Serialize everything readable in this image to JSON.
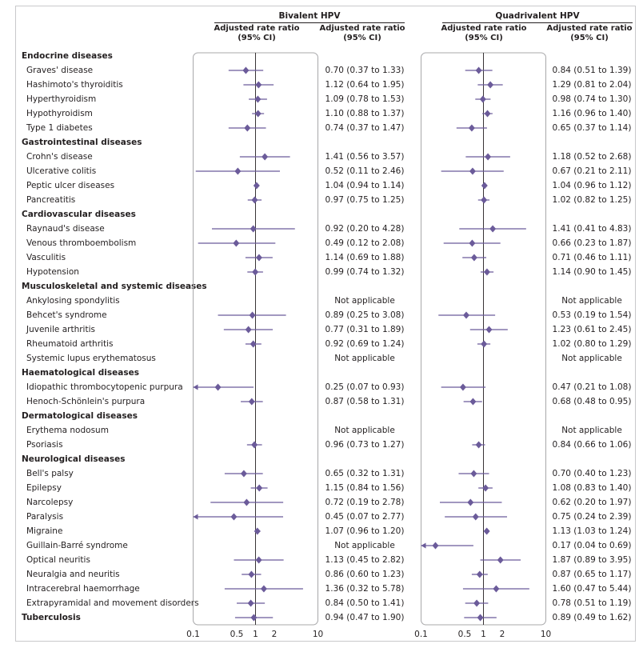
{
  "colors": {
    "marker": "#6b5b9a",
    "panel_border": "#a8a8aa",
    "text": "#231f20"
  },
  "columns": {
    "bivalent": "Bivalent HPV",
    "quadrivalent": "Quadrivalent HPV",
    "ratio_header_line1": "Adjusted rate ratio",
    "ci_header": "(95% CI)"
  },
  "chart_data": {
    "type": "forest",
    "x_scale": "log",
    "xlim": [
      0.1,
      10
    ],
    "x_ticks": [
      "0.1",
      "0.5",
      "1",
      "2",
      "10"
    ],
    "reference_line": 1,
    "panels": [
      "Bivalent HPV",
      "Quadrivalent HPV"
    ],
    "rows": [
      {
        "label": "Endocrine diseases",
        "category": true
      },
      {
        "label": "Graves' disease",
        "biv": {
          "est": 0.7,
          "lo": 0.37,
          "hi": 1.33,
          "text": "0.70 (0.37 to 1.33)"
        },
        "quad": {
          "est": 0.84,
          "lo": 0.51,
          "hi": 1.39,
          "text": "0.84 (0.51 to 1.39)"
        }
      },
      {
        "label": "Hashimoto's thyroiditis",
        "biv": {
          "est": 1.12,
          "lo": 0.64,
          "hi": 1.95,
          "text": "1.12 (0.64 to 1.95)"
        },
        "quad": {
          "est": 1.29,
          "lo": 0.81,
          "hi": 2.04,
          "text": "1.29 (0.81 to 2.04)"
        }
      },
      {
        "label": "Hyperthyroidism",
        "biv": {
          "est": 1.09,
          "lo": 0.78,
          "hi": 1.53,
          "text": "1.09 (0.78 to 1.53)"
        },
        "quad": {
          "est": 0.98,
          "lo": 0.74,
          "hi": 1.3,
          "text": "0.98 (0.74 to 1.30)"
        }
      },
      {
        "label": "Hypothyroidism",
        "biv": {
          "est": 1.1,
          "lo": 0.88,
          "hi": 1.37,
          "text": "1.10 (0.88 to 1.37)"
        },
        "quad": {
          "est": 1.16,
          "lo": 0.96,
          "hi": 1.4,
          "text": "1.16 (0.96 to 1.40)"
        }
      },
      {
        "label": "Type 1 diabetes",
        "biv": {
          "est": 0.74,
          "lo": 0.37,
          "hi": 1.47,
          "text": "0.74 (0.37 to 1.47)"
        },
        "quad": {
          "est": 0.65,
          "lo": 0.37,
          "hi": 1.14,
          "text": "0.65 (0.37 to 1.14)"
        }
      },
      {
        "label": "Gastrointestinal diseases",
        "category": true
      },
      {
        "label": "Crohn's disease",
        "biv": {
          "est": 1.41,
          "lo": 0.56,
          "hi": 3.57,
          "text": "1.41 (0.56 to 3.57)"
        },
        "quad": {
          "est": 1.18,
          "lo": 0.52,
          "hi": 2.68,
          "text": "1.18 (0.52 to 2.68)"
        }
      },
      {
        "label": "Ulcerative colitis",
        "biv": {
          "est": 0.52,
          "lo": 0.11,
          "hi": 2.46,
          "text": "0.52 (0.11 to 2.46)"
        },
        "quad": {
          "est": 0.67,
          "lo": 0.21,
          "hi": 2.11,
          "text": "0.67 (0.21 to 2.11)"
        }
      },
      {
        "label": "Peptic ulcer diseases",
        "biv": {
          "est": 1.04,
          "lo": 0.94,
          "hi": 1.14,
          "text": "1.04 (0.94 to 1.14)"
        },
        "quad": {
          "est": 1.04,
          "lo": 0.96,
          "hi": 1.12,
          "text": "1.04 (0.96 to 1.12)"
        }
      },
      {
        "label": "Pancreatitis",
        "biv": {
          "est": 0.97,
          "lo": 0.75,
          "hi": 1.25,
          "text": "0.97 (0.75 to 1.25)"
        },
        "quad": {
          "est": 1.02,
          "lo": 0.82,
          "hi": 1.25,
          "text": "1.02 (0.82 to 1.25)"
        }
      },
      {
        "label": "Cardiovascular diseases",
        "category": true
      },
      {
        "label": "Raynaud's disease",
        "biv": {
          "est": 0.92,
          "lo": 0.2,
          "hi": 4.28,
          "text": "0.92 (0.20 to 4.28)"
        },
        "quad": {
          "est": 1.41,
          "lo": 0.41,
          "hi": 4.83,
          "text": "1.41 (0.41 to 4.83)"
        }
      },
      {
        "label": "Venous thromboembolism",
        "biv": {
          "est": 0.49,
          "lo": 0.12,
          "hi": 2.08,
          "text": "0.49 (0.12 to 2.08)"
        },
        "quad": {
          "est": 0.66,
          "lo": 0.23,
          "hi": 1.87,
          "text": "0.66 (0.23 to 1.87)"
        }
      },
      {
        "label": "Vasculitis",
        "biv": {
          "est": 1.14,
          "lo": 0.69,
          "hi": 1.88,
          "text": "1.14 (0.69 to 1.88)"
        },
        "quad": {
          "est": 0.71,
          "lo": 0.46,
          "hi": 1.11,
          "text": "0.71 (0.46 to 1.11)"
        }
      },
      {
        "label": "Hypotension",
        "biv": {
          "est": 0.99,
          "lo": 0.74,
          "hi": 1.32,
          "text": "0.99 (0.74 to 1.32)"
        },
        "quad": {
          "est": 1.14,
          "lo": 0.9,
          "hi": 1.45,
          "text": "1.14 (0.90 to 1.45)"
        }
      },
      {
        "label": "Musculoskeletal and systemic diseases",
        "category": true
      },
      {
        "label": "Ankylosing spondylitis",
        "biv": {
          "text": "Not applicable"
        },
        "quad": {
          "text": "Not applicable"
        }
      },
      {
        "label": "Behcet's syndrome",
        "biv": {
          "est": 0.89,
          "lo": 0.25,
          "hi": 3.08,
          "text": "0.89 (0.25 to 3.08)"
        },
        "quad": {
          "est": 0.53,
          "lo": 0.19,
          "hi": 1.54,
          "text": "0.53 (0.19 to 1.54)"
        }
      },
      {
        "label": "Juvenile arthritis",
        "biv": {
          "est": 0.77,
          "lo": 0.31,
          "hi": 1.89,
          "text": "0.77 (0.31 to 1.89)"
        },
        "quad": {
          "est": 1.23,
          "lo": 0.61,
          "hi": 2.45,
          "text": "1.23 (0.61 to 2.45)"
        }
      },
      {
        "label": "Rheumatoid arthritis",
        "biv": {
          "est": 0.92,
          "lo": 0.69,
          "hi": 1.24,
          "text": "0.92 (0.69 to 1.24)"
        },
        "quad": {
          "est": 1.02,
          "lo": 0.8,
          "hi": 1.29,
          "text": "1.02 (0.80 to 1.29)"
        }
      },
      {
        "label": "Systemic lupus erythematosus",
        "biv": {
          "text": "Not applicable"
        },
        "quad": {
          "text": "Not applicable"
        }
      },
      {
        "label": "Haematological diseases",
        "category": true
      },
      {
        "label": "Idiopathic thrombocytopenic purpura",
        "biv": {
          "est": 0.25,
          "lo": 0.07,
          "hi": 0.93,
          "text": "0.25 (0.07 to 0.93)"
        },
        "quad": {
          "est": 0.47,
          "lo": 0.21,
          "hi": 1.08,
          "text": "0.47 (0.21 to 1.08)"
        }
      },
      {
        "label": "Henoch-Schönlein's purpura",
        "biv": {
          "est": 0.87,
          "lo": 0.58,
          "hi": 1.31,
          "text": "0.87 (0.58 to 1.31)"
        },
        "quad": {
          "est": 0.68,
          "lo": 0.48,
          "hi": 0.95,
          "text": "0.68 (0.48 to 0.95)"
        }
      },
      {
        "label": "Dermatological diseases",
        "category": true
      },
      {
        "label": "Erythema nodosum",
        "biv": {
          "text": "Not applicable"
        },
        "quad": {
          "text": "Not applicable"
        }
      },
      {
        "label": "Psoriasis",
        "biv": {
          "est": 0.96,
          "lo": 0.73,
          "hi": 1.27,
          "text": "0.96 (0.73 to 1.27)"
        },
        "quad": {
          "est": 0.84,
          "lo": 0.66,
          "hi": 1.06,
          "text": "0.84 (0.66 to 1.06)"
        }
      },
      {
        "label": "Neurological diseases",
        "category": true
      },
      {
        "label": "Bell's palsy",
        "biv": {
          "est": 0.65,
          "lo": 0.32,
          "hi": 1.31,
          "text": "0.65 (0.32 to 1.31)"
        },
        "quad": {
          "est": 0.7,
          "lo": 0.4,
          "hi": 1.23,
          "text": "0.70 (0.40 to 1.23)"
        }
      },
      {
        "label": "Epilepsy",
        "biv": {
          "est": 1.15,
          "lo": 0.84,
          "hi": 1.56,
          "text": "1.15 (0.84 to 1.56)"
        },
        "quad": {
          "est": 1.08,
          "lo": 0.83,
          "hi": 1.4,
          "text": "1.08 (0.83 to 1.40)"
        }
      },
      {
        "label": "Narcolepsy",
        "biv": {
          "est": 0.72,
          "lo": 0.19,
          "hi": 2.78,
          "text": "0.72 (0.19 to 2.78)"
        },
        "quad": {
          "est": 0.62,
          "lo": 0.2,
          "hi": 1.97,
          "text": "0.62 (0.20 to 1.97)"
        }
      },
      {
        "label": "Paralysis",
        "biv": {
          "est": 0.45,
          "lo": 0.07,
          "hi": 2.77,
          "text": "0.45 (0.07 to 2.77)"
        },
        "quad": {
          "est": 0.75,
          "lo": 0.24,
          "hi": 2.39,
          "text": "0.75 (0.24 to 2.39)"
        }
      },
      {
        "label": "Migraine",
        "biv": {
          "est": 1.07,
          "lo": 0.96,
          "hi": 1.2,
          "text": "1.07 (0.96 to 1.20)"
        },
        "quad": {
          "est": 1.13,
          "lo": 1.03,
          "hi": 1.24,
          "text": "1.13 (1.03 to 1.24)"
        }
      },
      {
        "label": "Guillain-Barré syndrome",
        "biv": {
          "text": "Not applicable"
        },
        "quad": {
          "est": 0.17,
          "lo": 0.04,
          "hi": 0.69,
          "text": "0.17 (0.04 to 0.69)"
        }
      },
      {
        "label": "Optical neuritis",
        "biv": {
          "est": 1.13,
          "lo": 0.45,
          "hi": 2.82,
          "text": "1.13 (0.45 to 2.82)"
        },
        "quad": {
          "est": 1.87,
          "lo": 0.89,
          "hi": 3.95,
          "text": "1.87 (0.89 to 3.95)"
        }
      },
      {
        "label": "Neuralgia and neuritis",
        "biv": {
          "est": 0.86,
          "lo": 0.6,
          "hi": 1.23,
          "text": "0.86 (0.60 to 1.23)"
        },
        "quad": {
          "est": 0.87,
          "lo": 0.65,
          "hi": 1.17,
          "text": "0.87 (0.65 to 1.17)"
        }
      },
      {
        "label": "Intracerebral haemorrhage",
        "biv": {
          "est": 1.36,
          "lo": 0.32,
          "hi": 5.78,
          "text": "1.36 (0.32 to 5.78)"
        },
        "quad": {
          "est": 1.6,
          "lo": 0.47,
          "hi": 5.44,
          "text": "1.60 (0.47 to 5.44)"
        }
      },
      {
        "label": "Extrapyramidal and movement disorders",
        "biv": {
          "est": 0.84,
          "lo": 0.5,
          "hi": 1.41,
          "text": "0.84 (0.50 to 1.41)"
        },
        "quad": {
          "est": 0.78,
          "lo": 0.51,
          "hi": 1.19,
          "text": "0.78 (0.51 to 1.19)"
        }
      },
      {
        "label": "Tuberculosis",
        "category": true,
        "biv": {
          "est": 0.94,
          "lo": 0.47,
          "hi": 1.9,
          "text": "0.94 (0.47 to 1.90)"
        },
        "quad": {
          "est": 0.89,
          "lo": 0.49,
          "hi": 1.62,
          "text": "0.89 (0.49 to 1.62)"
        }
      }
    ]
  }
}
